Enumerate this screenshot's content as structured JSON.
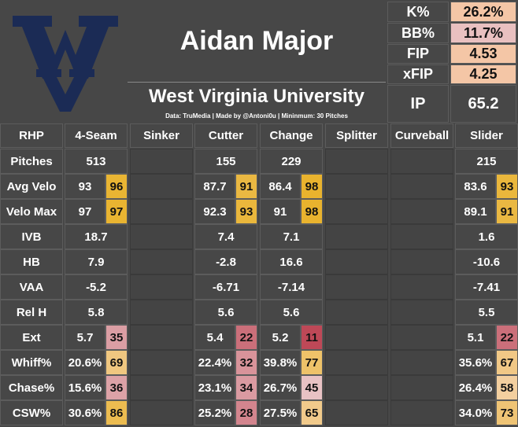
{
  "header": {
    "name": "Aidan Major",
    "school": "West Virginia University",
    "note": "Data: TruMedia | Made by @Antoni0u | Mininmum: 30 Pitches",
    "stats": [
      {
        "label": "K%",
        "value": "26.2%",
        "color": "#f4c6a6"
      },
      {
        "label": "BB%",
        "value": "11.7%",
        "color": "#e9c0c0"
      },
      {
        "label": "FIP",
        "value": "4.53",
        "color": "#f4c6a6"
      },
      {
        "label": "xFIP",
        "value": "4.25",
        "color": "#f4c6a6"
      }
    ],
    "ip": {
      "label": "IP",
      "value": "65.2"
    }
  },
  "table": {
    "columns": [
      "RHP",
      "4-Seam",
      "Sinker",
      "Cutter",
      "Change",
      "Splitter",
      "Curveball",
      "Slider"
    ],
    "rows": [
      {
        "label": "Pitches",
        "cells": [
          {
            "value": "513"
          },
          null,
          {
            "value": "155"
          },
          {
            "value": "229"
          },
          null,
          null,
          {
            "value": "215"
          }
        ]
      },
      {
        "label": "Avg Velo",
        "cells": [
          {
            "value": "93",
            "pct": 96
          },
          null,
          {
            "value": "87.7",
            "pct": 91
          },
          {
            "value": "86.4",
            "pct": 98
          },
          null,
          null,
          {
            "value": "83.6",
            "pct": 93
          }
        ]
      },
      {
        "label": "Velo Max",
        "cells": [
          {
            "value": "97",
            "pct": 97
          },
          null,
          {
            "value": "92.3",
            "pct": 93
          },
          {
            "value": "91",
            "pct": 98
          },
          null,
          null,
          {
            "value": "89.1",
            "pct": 91
          }
        ]
      },
      {
        "label": "IVB",
        "cells": [
          {
            "value": "18.7"
          },
          null,
          {
            "value": "7.4"
          },
          {
            "value": "7.1"
          },
          null,
          null,
          {
            "value": "1.6"
          }
        ]
      },
      {
        "label": "HB",
        "cells": [
          {
            "value": "7.9"
          },
          null,
          {
            "value": "-2.8"
          },
          {
            "value": "16.6"
          },
          null,
          null,
          {
            "value": "-10.6"
          }
        ]
      },
      {
        "label": "VAA",
        "cells": [
          {
            "value": "-5.2"
          },
          null,
          {
            "value": "-6.71"
          },
          {
            "value": "-7.14"
          },
          null,
          null,
          {
            "value": "-7.41"
          }
        ]
      },
      {
        "label": "Rel H",
        "cells": [
          {
            "value": "5.8"
          },
          null,
          {
            "value": "5.6"
          },
          {
            "value": "5.6"
          },
          null,
          null,
          {
            "value": "5.5"
          }
        ]
      },
      {
        "label": "Ext",
        "cells": [
          {
            "value": "5.7",
            "pct": 35
          },
          null,
          {
            "value": "5.4",
            "pct": 22
          },
          {
            "value": "5.2",
            "pct": 11
          },
          null,
          null,
          {
            "value": "5.1",
            "pct": 22
          }
        ]
      },
      {
        "label": "Whiff%",
        "cells": [
          {
            "value": "20.6%",
            "pct": 69
          },
          null,
          {
            "value": "22.4%",
            "pct": 32
          },
          {
            "value": "39.8%",
            "pct": 77
          },
          null,
          null,
          {
            "value": "35.6%",
            "pct": 67
          }
        ]
      },
      {
        "label": "Chase%",
        "cells": [
          {
            "value": "15.6%",
            "pct": 36
          },
          null,
          {
            "value": "23.1%",
            "pct": 34
          },
          {
            "value": "26.7%",
            "pct": 45
          },
          null,
          null,
          {
            "value": "26.4%",
            "pct": 58
          }
        ]
      },
      {
        "label": "CSW%",
        "cells": [
          {
            "value": "30.6%",
            "pct": 86
          },
          null,
          {
            "value": "25.2%",
            "pct": 28
          },
          {
            "value": "27.5%",
            "pct": 65
          },
          null,
          null,
          {
            "value": "34.0%",
            "pct": 73
          }
        ]
      }
    ]
  }
}
